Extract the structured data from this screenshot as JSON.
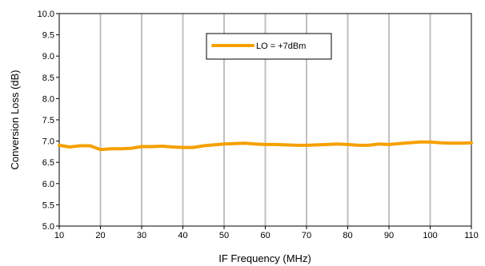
{
  "chart_data": {
    "type": "line",
    "title": "",
    "xlabel": "IF Frequency (MHz)",
    "ylabel": "Conversion Loss (dB)",
    "xlim": [
      10,
      110
    ],
    "ylim": [
      5.0,
      10.0
    ],
    "x_ticks": [
      "10",
      "20",
      "30",
      "40",
      "50",
      "60",
      "70",
      "80",
      "90",
      "100",
      "110"
    ],
    "y_ticks": [
      "5.0",
      "5.5",
      "6.0",
      "6.5",
      "7.0",
      "7.5",
      "8.0",
      "8.5",
      "9.0",
      "9.5",
      "10.0"
    ],
    "grid": {
      "vertical": true,
      "horizontal": false
    },
    "legend": {
      "position": "top-center",
      "boxed": true
    },
    "series": [
      {
        "name": "LO = +7dBm",
        "color": "#f5a000",
        "x": [
          10,
          12.5,
          15,
          17.5,
          20,
          22.5,
          25,
          27.5,
          30,
          32.5,
          35,
          37.5,
          40,
          42.5,
          45,
          47.5,
          50,
          52.5,
          55,
          57.5,
          60,
          62.5,
          65,
          67.5,
          70,
          72.5,
          75,
          77.5,
          80,
          82.5,
          85,
          87.5,
          90,
          92.5,
          95,
          97.5,
          100,
          102.5,
          105,
          107.5,
          110
        ],
        "y": [
          6.9,
          6.86,
          6.89,
          6.89,
          6.8,
          6.82,
          6.82,
          6.83,
          6.87,
          6.87,
          6.88,
          6.86,
          6.85,
          6.85,
          6.89,
          6.91,
          6.93,
          6.94,
          6.95,
          6.93,
          6.92,
          6.92,
          6.91,
          6.9,
          6.9,
          6.91,
          6.92,
          6.93,
          6.92,
          6.9,
          6.9,
          6.93,
          6.92,
          6.94,
          6.96,
          6.98,
          6.98,
          6.96,
          6.95,
          6.95,
          6.96
        ]
      }
    ]
  }
}
